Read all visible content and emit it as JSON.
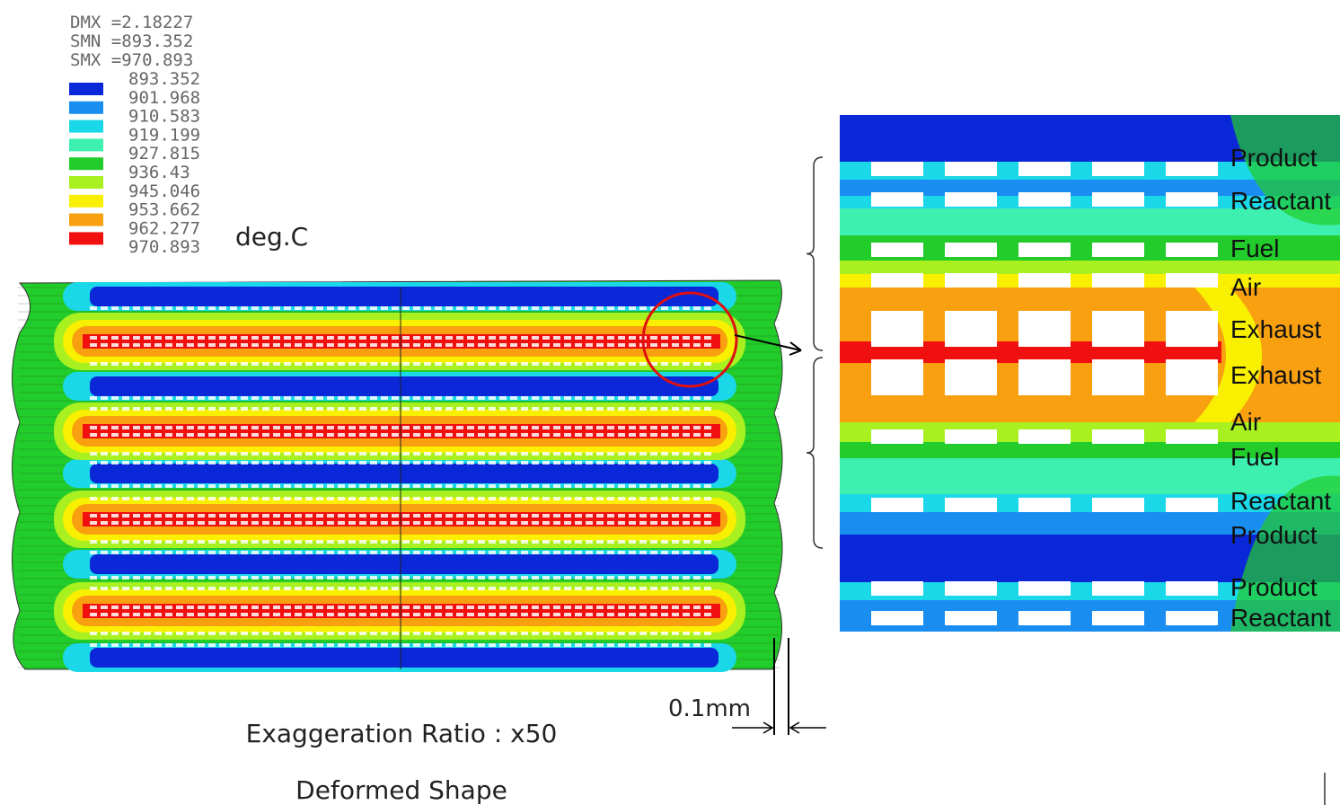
{
  "legend": {
    "header": [
      "DMX =2.18227",
      "SMN =893.352",
      "SMX =970.893"
    ],
    "values": [
      "893.352",
      "901.968",
      "910.583",
      "919.199",
      "927.815",
      "936.43",
      "945.046",
      "953.662",
      "962.277",
      "970.893"
    ],
    "colors": [
      "#0a28d8",
      "#1a8ef0",
      "#1ad8e8",
      "#3ef0b0",
      "#22cc2a",
      "#a8f020",
      "#f8f000",
      "#f8a010",
      "#f01010"
    ],
    "unit": "deg.C"
  },
  "stream_labels": [
    "Product",
    "Reactant",
    "Fuel",
    "Air",
    "Exhaust",
    "Exhaust",
    "Air",
    "Fuel",
    "Reactant",
    "Product",
    "Product",
    "Reactant"
  ],
  "dimension": "0.1mm",
  "caption": "Exaggeration Ratio : x50",
  "subtitle": "Deformed Shape"
}
